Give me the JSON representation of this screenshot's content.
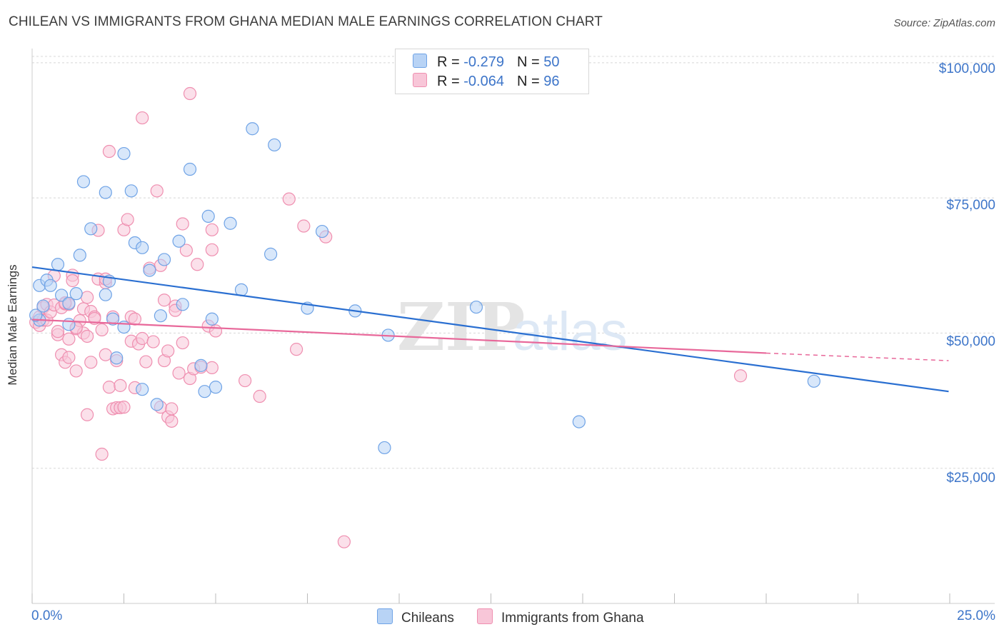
{
  "title": "CHILEAN VS IMMIGRANTS FROM GHANA MEDIAN MALE EARNINGS CORRELATION CHART",
  "source": "Source: ZipAtlas.com",
  "watermark": {
    "zip": "ZIP",
    "atlas": "atlas"
  },
  "colors": {
    "blue": "#6fa3e6",
    "blue_fill": "#b8d3f5",
    "blue_line": "#2a6fd1",
    "pink": "#ef8fb0",
    "pink_fill": "#f8c6d8",
    "pink_line": "#e8689a",
    "axis_text": "#3d75c9",
    "grid": "#d8d8d8"
  },
  "legend": {
    "rows": [
      {
        "r_label": "R = ",
        "r_value": "-0.279",
        "n_label": "N = ",
        "n_value": "50"
      },
      {
        "r_label": "R = ",
        "r_value": "-0.064",
        "n_label": "N = ",
        "n_value": "96"
      }
    ]
  },
  "bottom_legend": {
    "series1": "Chileans",
    "series2": "Immigrants from Ghana"
  },
  "chart_data": {
    "type": "scatter",
    "title": "CHILEAN VS IMMIGRANTS FROM GHANA MEDIAN MALE EARNINGS CORRELATION CHART",
    "xlabel": "",
    "ylabel": "Median Male Earnings",
    "xlim": [
      0,
      25
    ],
    "ylim": [
      0,
      105000
    ],
    "x_tick_labels": [
      "0.0%",
      "25.0%"
    ],
    "y_ticks": [
      25000,
      50000,
      75000,
      100000
    ],
    "y_tick_labels": [
      "$25,000",
      "$50,000",
      "$75,000",
      "$100,000"
    ],
    "grid": true,
    "legend_position": "top-center",
    "series": [
      {
        "name": "Chileans",
        "color": "#6fa3e6",
        "trend": {
          "x": [
            0,
            24.97
          ],
          "y": [
            62200,
            39200
          ]
        },
        "points": [
          [
            0.2,
            58800
          ],
          [
            0.4,
            59800
          ],
          [
            0.5,
            58800
          ],
          [
            0.7,
            62700
          ],
          [
            0.8,
            57000
          ],
          [
            1.0,
            55500
          ],
          [
            1.0,
            51600
          ],
          [
            1.2,
            57300
          ],
          [
            1.3,
            64400
          ],
          [
            1.4,
            78000
          ],
          [
            1.6,
            69300
          ],
          [
            2.0,
            76000
          ],
          [
            2.0,
            57100
          ],
          [
            2.1,
            59600
          ],
          [
            2.2,
            52600
          ],
          [
            2.3,
            45400
          ],
          [
            2.5,
            51100
          ],
          [
            2.5,
            83200
          ],
          [
            2.7,
            76300
          ],
          [
            2.8,
            66700
          ],
          [
            3.0,
            65800
          ],
          [
            3.0,
            39600
          ],
          [
            3.2,
            61600
          ],
          [
            3.4,
            36800
          ],
          [
            3.5,
            53200
          ],
          [
            3.6,
            63600
          ],
          [
            4.0,
            67000
          ],
          [
            4.1,
            55300
          ],
          [
            4.3,
            80300
          ],
          [
            4.6,
            44000
          ],
          [
            4.7,
            39200
          ],
          [
            4.8,
            71600
          ],
          [
            4.9,
            52600
          ],
          [
            5.0,
            40000
          ],
          [
            5.4,
            70300
          ],
          [
            5.7,
            58000
          ],
          [
            6.0,
            87800
          ],
          [
            6.5,
            64600
          ],
          [
            6.6,
            84800
          ],
          [
            7.5,
            54600
          ],
          [
            7.9,
            68800
          ],
          [
            8.8,
            54100
          ],
          [
            9.6,
            28800
          ],
          [
            9.7,
            49600
          ],
          [
            12.1,
            54800
          ],
          [
            14.9,
            33600
          ],
          [
            21.3,
            41100
          ],
          [
            0.2,
            52400
          ],
          [
            0.1,
            53300
          ],
          [
            0.3,
            55000
          ]
        ]
      },
      {
        "name": "Immigrants from Ghana",
        "color": "#ef8fb0",
        "trend": {
          "x": [
            0,
            20
          ],
          "y": [
            52500,
            46300
          ]
        },
        "trend_dashed": {
          "x": [
            20,
            24.97
          ],
          "y": [
            46300,
            44900
          ]
        },
        "points": [
          [
            0.1,
            52000
          ],
          [
            0.2,
            51400
          ],
          [
            0.2,
            53000
          ],
          [
            0.3,
            52400
          ],
          [
            0.3,
            54700
          ],
          [
            0.4,
            55300
          ],
          [
            0.4,
            52400
          ],
          [
            0.5,
            53900
          ],
          [
            0.6,
            60600
          ],
          [
            0.6,
            55200
          ],
          [
            0.7,
            49700
          ],
          [
            0.7,
            50300
          ],
          [
            0.8,
            46000
          ],
          [
            0.8,
            54700
          ],
          [
            0.9,
            55400
          ],
          [
            1.0,
            55300
          ],
          [
            0.9,
            44600
          ],
          [
            1.0,
            45500
          ],
          [
            1.0,
            48900
          ],
          [
            1.1,
            60700
          ],
          [
            1.1,
            59700
          ],
          [
            1.2,
            50800
          ],
          [
            1.2,
            43000
          ],
          [
            1.3,
            52300
          ],
          [
            1.4,
            54500
          ],
          [
            1.4,
            50000
          ],
          [
            1.5,
            56600
          ],
          [
            1.5,
            34900
          ],
          [
            1.5,
            49400
          ],
          [
            1.6,
            44600
          ],
          [
            1.6,
            54000
          ],
          [
            1.7,
            53000
          ],
          [
            1.7,
            52700
          ],
          [
            1.8,
            60000
          ],
          [
            1.8,
            69000
          ],
          [
            1.9,
            50600
          ],
          [
            1.9,
            27600
          ],
          [
            2.0,
            59300
          ],
          [
            2.0,
            46000
          ],
          [
            2.1,
            40000
          ],
          [
            2.1,
            83600
          ],
          [
            2.2,
            36000
          ],
          [
            2.2,
            53000
          ],
          [
            2.3,
            36200
          ],
          [
            2.3,
            44900
          ],
          [
            2.4,
            40300
          ],
          [
            2.4,
            36200
          ],
          [
            2.5,
            36300
          ],
          [
            2.5,
            69100
          ],
          [
            2.6,
            71000
          ],
          [
            2.7,
            53000
          ],
          [
            2.7,
            48500
          ],
          [
            2.8,
            39900
          ],
          [
            2.9,
            48000
          ],
          [
            3.0,
            89800
          ],
          [
            3.0,
            49000
          ],
          [
            3.1,
            44700
          ],
          [
            3.2,
            62000
          ],
          [
            3.3,
            48400
          ],
          [
            3.4,
            76300
          ],
          [
            3.5,
            62500
          ],
          [
            3.5,
            36300
          ],
          [
            3.6,
            44900
          ],
          [
            3.7,
            34500
          ],
          [
            3.7,
            46700
          ],
          [
            3.8,
            33700
          ],
          [
            3.8,
            36000
          ],
          [
            3.9,
            55000
          ],
          [
            3.9,
            54200
          ],
          [
            4.0,
            42600
          ],
          [
            4.1,
            70200
          ],
          [
            4.1,
            48200
          ],
          [
            4.2,
            65300
          ],
          [
            4.3,
            41600
          ],
          [
            4.3,
            94300
          ],
          [
            4.4,
            43400
          ],
          [
            4.5,
            62700
          ],
          [
            4.6,
            43700
          ],
          [
            4.8,
            51300
          ],
          [
            4.9,
            65400
          ],
          [
            4.9,
            69100
          ],
          [
            4.9,
            43600
          ],
          [
            5.0,
            50400
          ],
          [
            5.8,
            41200
          ],
          [
            6.2,
            38300
          ],
          [
            7.0,
            74800
          ],
          [
            7.2,
            47000
          ],
          [
            7.4,
            69800
          ],
          [
            8.0,
            67800
          ],
          [
            8.5,
            11400
          ],
          [
            19.3,
            42100
          ],
          [
            3.6,
            56100
          ],
          [
            2.0,
            60000
          ],
          [
            1.2,
            51000
          ],
          [
            0.9,
            55600
          ],
          [
            2.8,
            52600
          ]
        ]
      }
    ]
  }
}
